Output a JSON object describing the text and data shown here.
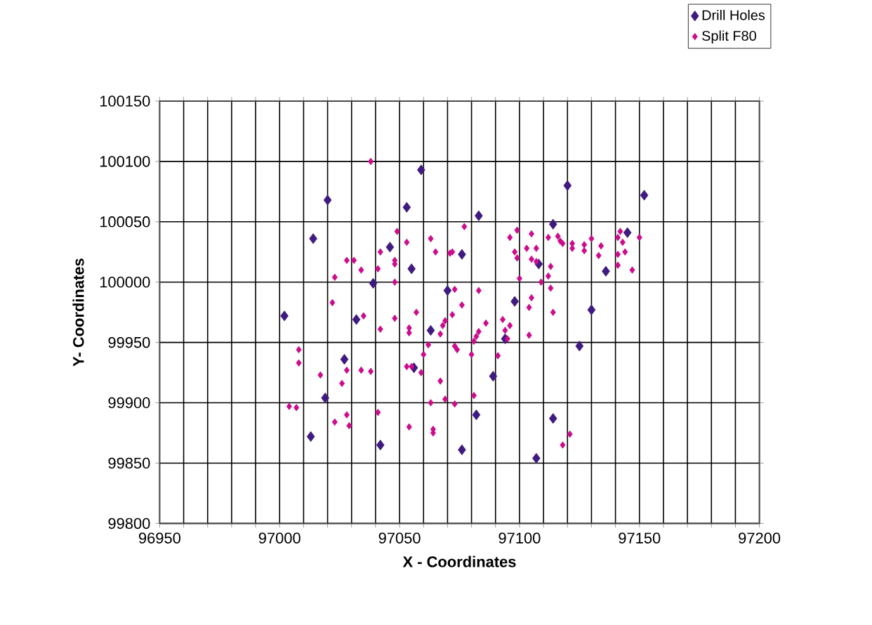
{
  "chart_data": {
    "type": "scatter",
    "xlabel": "X - Coordinates",
    "ylabel": "Y- Coordinates",
    "xlim": [
      96950,
      97200
    ],
    "ylim": [
      99800,
      100150
    ],
    "xticks": [
      96950,
      {
        "value": 96960,
        "label": null
      },
      {
        "value": 96970,
        "label": null
      },
      {
        "value": 96980,
        "label": null
      },
      {
        "value": 96990,
        "label": null
      },
      97000,
      {
        "value": 97010,
        "label": null
      },
      {
        "value": 97020,
        "label": null
      },
      {
        "value": 97030,
        "label": null
      },
      {
        "value": 97040,
        "label": null
      },
      97050,
      {
        "value": 97060,
        "label": null
      },
      {
        "value": 97070,
        "label": null
      },
      {
        "value": 97080,
        "label": null
      },
      {
        "value": 97090,
        "label": null
      },
      97100,
      {
        "value": 97110,
        "label": null
      },
      {
        "value": 97120,
        "label": null
      },
      {
        "value": 97130,
        "label": null
      },
      {
        "value": 97140,
        "label": null
      },
      97150,
      {
        "value": 97160,
        "label": null
      },
      {
        "value": 97170,
        "label": null
      },
      {
        "value": 97180,
        "label": null
      },
      {
        "value": 97190,
        "label": null
      },
      97200
    ],
    "yticks": [
      99800,
      99850,
      99900,
      99950,
      100000,
      100050,
      100100,
      100150
    ],
    "grid": true,
    "legend": "top right",
    "marker": "diamond",
    "series": [
      {
        "name": "Drill Holes",
        "color": "#3f1a80",
        "x": [
          97014,
          97020,
          97059,
          97053,
          97046,
          97055,
          97039,
          97076,
          97083,
          97070,
          97120,
          97114,
          97152,
          97145,
          97136,
          97108,
          97002,
          97032,
          97063,
          97027,
          97056,
          97019,
          97013,
          97042,
          97076,
          97082,
          97098,
          97130,
          97094,
          97125,
          97089,
          97114,
          97107
        ],
        "values": [
          100036,
          100068,
          100093,
          100062,
          100029,
          100011,
          99999,
          100023,
          100055,
          99993,
          100080,
          100048,
          100072,
          100041,
          100009,
          100015,
          99972,
          99969,
          99960,
          99936,
          99929,
          99904,
          99872,
          99865,
          99861,
          99890,
          99984,
          99977,
          99953,
          99947,
          99922,
          99887,
          99854
        ]
      },
      {
        "name": "Split F80",
        "color": "#cc0c8c",
        "x": [
          97038,
          97023,
          97028,
          97031,
          97034,
          97041,
          97042,
          97049,
          97053,
          97048,
          97048,
          97048,
          97063,
          97065,
          97071,
          97072,
          97077,
          97073,
          97083,
          97099,
          97105,
          97096,
          97103,
          97107,
          97098,
          97099,
          97105,
          97107,
          97112,
          97116,
          97117,
          97118,
          97122,
          97122,
          97127,
          97127,
          97130,
          97134,
          97133,
          97142,
          97141,
          97143,
          97144,
          97141,
          97150,
          97147,
          97141,
          97113,
          97112,
          97100,
          97109,
          97113,
          97022,
          97035,
          97042,
          97048,
          97054,
          97054,
          97057,
          97069,
          97068,
          97067,
          97076,
          97072,
          97062,
          97060,
          97059,
          97053,
          97055,
          97067,
          97073,
          97074,
          97080,
          97081,
          97082,
          97083,
          97081,
          97073,
          97069,
          97063,
          97064,
          97064,
          97054,
          97041,
          97034,
          97038,
          97028,
          97026,
          97017,
          97008,
          97008,
          97004,
          97007,
          97023,
          97028,
          97029,
          97105,
          97104,
          97114,
          97086,
          97093,
          97096,
          97094,
          97095,
          97104,
          97091,
          97121,
          97118
        ],
        "values": [
          100100,
          100004,
          100018,
          100018,
          100010,
          100011,
          100025,
          100042,
          100033,
          100018,
          100015,
          100000,
          100036,
          100025,
          100024,
          100025,
          100046,
          99994,
          99993,
          100043,
          100040,
          100037,
          100028,
          100028,
          100025,
          100020,
          100019,
          100017,
          100037,
          100038,
          100034,
          100032,
          100032,
          100028,
          100031,
          100026,
          100036,
          100030,
          100022,
          100042,
          100037,
          100033,
          100025,
          100023,
          100037,
          100010,
          100014,
          100013,
          100005,
          100003,
          100000,
          99995,
          99983,
          99972,
          99961,
          99970,
          99962,
          99958,
          99975,
          99968,
          99964,
          99957,
          99981,
          99973,
          99948,
          99940,
          99925,
          99930,
          99930,
          99918,
          99947,
          99944,
          99940,
          99951,
          99955,
          99959,
          99906,
          99899,
          99903,
          99900,
          99878,
          99875,
          99880,
          99892,
          99927,
          99926,
          99927,
          99916,
          99923,
          99944,
          99933,
          99897,
          99896,
          99884,
          99890,
          99881,
          99987,
          99979,
          99975,
          99966,
          99969,
          99964,
          99960,
          99953,
          99956,
          99939,
          99874,
          99865
        ]
      }
    ]
  }
}
